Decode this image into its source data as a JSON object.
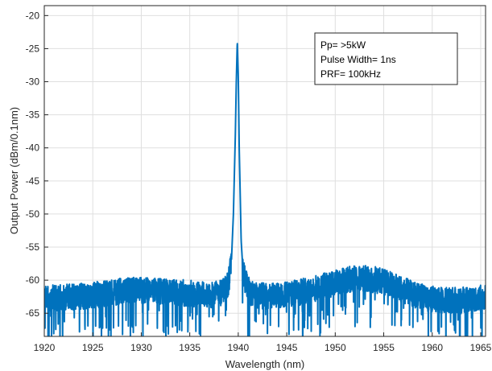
{
  "chart_data": {
    "type": "line",
    "title": "",
    "xlabel": "Wavelength (nm)",
    "ylabel": "Output Power (dBm/0.1nm)",
    "xlim": [
      1920,
      1965.5
    ],
    "ylim": [
      -68.5,
      -18.5
    ],
    "x_ticks": [
      1920,
      1925,
      1930,
      1935,
      1940,
      1945,
      1950,
      1955,
      1960,
      1965
    ],
    "y_ticks": [
      -65,
      -60,
      -55,
      -50,
      -45,
      -40,
      -35,
      -30,
      -25,
      -20
    ],
    "x_tick_labels": [
      "1920",
      "1925",
      "1930",
      "1935",
      "1940",
      "1945",
      "1950",
      "1955",
      "1960",
      "1965"
    ],
    "y_tick_labels": [
      "-65",
      "-60",
      "-55",
      "-50",
      "-45",
      "-40",
      "-35",
      "-30",
      "-25",
      "-20"
    ],
    "grid": true,
    "legend": null,
    "series": [
      {
        "color": "#0072bd",
        "x": [
          1920,
          1921,
          1922,
          1923,
          1924,
          1925,
          1926,
          1927,
          1928,
          1929,
          1930,
          1931,
          1932,
          1933,
          1934,
          1935,
          1936,
          1937,
          1938,
          1938.5,
          1939,
          1939.3,
          1939.5,
          1939.7,
          1939.8,
          1939.9,
          1940,
          1940.1,
          1940.3,
          1940.5,
          1941,
          1941.5,
          1942,
          1943,
          1944,
          1945,
          1946,
          1947,
          1948,
          1949,
          1950,
          1951,
          1952,
          1953,
          1954,
          1955,
          1956,
          1957,
          1958,
          1959,
          1960,
          1961,
          1962,
          1963,
          1964,
          1965,
          1965.5
        ],
        "y": [
          -63,
          -62.8,
          -62.7,
          -62.6,
          -62.5,
          -62.4,
          -62.2,
          -62,
          -61.8,
          -61.7,
          -61.6,
          -61.7,
          -61.8,
          -62,
          -62,
          -62.1,
          -62.2,
          -62.3,
          -62.2,
          -61.8,
          -60.5,
          -57,
          -50,
          -38,
          -30,
          -24,
          -29,
          -40,
          -54,
          -59,
          -61.5,
          -62.2,
          -62.5,
          -62.5,
          -62.4,
          -62.2,
          -62,
          -61.7,
          -61.3,
          -61,
          -60.6,
          -60.2,
          -59.8,
          -59.8,
          -60,
          -60.4,
          -61,
          -61.6,
          -62.2,
          -62.7,
          -63,
          -63.2,
          -63.2,
          -63.2,
          -63,
          -62.8,
          -62.5
        ]
      }
    ],
    "annotation": {
      "lines": [
        "Pp= >5kW",
        "Pulse Width= 1ns",
        "PRF= 100kHz"
      ],
      "placement": "top-right"
    }
  }
}
